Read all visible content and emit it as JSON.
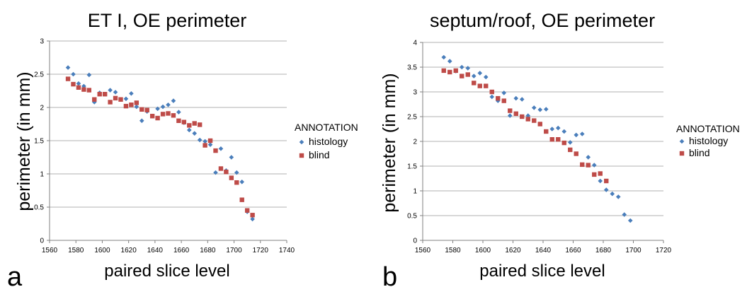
{
  "series_style": {
    "histology": {
      "color": "#4A7EBB",
      "marker": "diamond"
    },
    "blind": {
      "color": "#BE4B48",
      "marker": "square"
    }
  },
  "chart_data": [
    {
      "type": "scatter",
      "panel_label": "a",
      "title": "ET I, OE perimeter",
      "xlabel": "paired slice level",
      "ylabel": "perimeter (in mm)",
      "xlim": [
        1560,
        1740
      ],
      "ylim": [
        0,
        3
      ],
      "xticks": [
        1560,
        1580,
        1600,
        1620,
        1640,
        1660,
        1680,
        1700,
        1720,
        1740
      ],
      "yticks": [
        0,
        0.5,
        1,
        1.5,
        2,
        2.5,
        3
      ],
      "xtick_labels": [
        "1560",
        "1580",
        "1600",
        "1620",
        "1640",
        "1660",
        "1680",
        "1700",
        "1720",
        "1740"
      ],
      "ytick_labels": [
        "0",
        "0.5",
        "1",
        "1.5",
        "2",
        "2.5",
        "3"
      ],
      "grid": "horizontal",
      "legend": {
        "title": "ANNOTATION",
        "position": "right"
      },
      "series": [
        {
          "name": "histology",
          "points": [
            [
              1574,
              2.6
            ],
            [
              1578,
              2.5
            ],
            [
              1582,
              2.36
            ],
            [
              1586,
              2.32
            ],
            [
              1590,
              2.49
            ],
            [
              1594,
              2.08
            ],
            [
              1598,
              2.22
            ],
            [
              1602,
              2.2
            ],
            [
              1606,
              2.26
            ],
            [
              1610,
              2.23
            ],
            [
              1614,
              2.12
            ],
            [
              1618,
              2.13
            ],
            [
              1622,
              2.21
            ],
            [
              1626,
              2.01
            ],
            [
              1630,
              1.8
            ],
            [
              1634,
              1.94
            ],
            [
              1638,
              1.87
            ],
            [
              1642,
              1.98
            ],
            [
              1646,
              2.01
            ],
            [
              1650,
              2.04
            ],
            [
              1654,
              2.1
            ],
            [
              1658,
              1.93
            ],
            [
              1662,
              1.77
            ],
            [
              1666,
              1.66
            ],
            [
              1670,
              1.61
            ],
            [
              1674,
              1.51
            ],
            [
              1678,
              1.49
            ],
            [
              1682,
              1.44
            ],
            [
              1686,
              1.02
            ],
            [
              1690,
              1.38
            ],
            [
              1694,
              1.05
            ],
            [
              1698,
              1.25
            ],
            [
              1702,
              1.02
            ],
            [
              1706,
              0.88
            ],
            [
              1710,
              0.43
            ],
            [
              1714,
              0.32
            ]
          ]
        },
        {
          "name": "blind",
          "points": [
            [
              1574,
              2.43
            ],
            [
              1578,
              2.35
            ],
            [
              1582,
              2.3
            ],
            [
              1586,
              2.27
            ],
            [
              1590,
              2.26
            ],
            [
              1594,
              2.12
            ],
            [
              1598,
              2.2
            ],
            [
              1602,
              2.2
            ],
            [
              1606,
              2.08
            ],
            [
              1610,
              2.14
            ],
            [
              1614,
              2.12
            ],
            [
              1618,
              2.02
            ],
            [
              1622,
              2.04
            ],
            [
              1626,
              2.07
            ],
            [
              1630,
              1.97
            ],
            [
              1634,
              1.96
            ],
            [
              1638,
              1.87
            ],
            [
              1642,
              1.84
            ],
            [
              1646,
              1.9
            ],
            [
              1650,
              1.91
            ],
            [
              1654,
              1.88
            ],
            [
              1658,
              1.8
            ],
            [
              1662,
              1.78
            ],
            [
              1666,
              1.73
            ],
            [
              1670,
              1.76
            ],
            [
              1674,
              1.74
            ],
            [
              1678,
              1.43
            ],
            [
              1682,
              1.5
            ],
            [
              1686,
              1.35
            ],
            [
              1690,
              1.08
            ],
            [
              1694,
              1.03
            ],
            [
              1698,
              0.94
            ],
            [
              1702,
              0.87
            ],
            [
              1706,
              0.61
            ],
            [
              1710,
              0.45
            ],
            [
              1714,
              0.38
            ]
          ]
        }
      ]
    },
    {
      "type": "scatter",
      "panel_label": "b",
      "title": "septum/roof, OE perimeter",
      "xlabel": "paired slice level",
      "ylabel": "perimeter (in mm)",
      "xlim": [
        1560,
        1720
      ],
      "ylim": [
        0,
        4
      ],
      "xticks": [
        1560,
        1580,
        1600,
        1620,
        1640,
        1660,
        1680,
        1700,
        1720
      ],
      "yticks": [
        0,
        0.5,
        1,
        1.5,
        2,
        2.5,
        3,
        3.5,
        4
      ],
      "xtick_labels": [
        "1560",
        "1580",
        "1600",
        "1620",
        "1640",
        "1660",
        "1680",
        "1700",
        "1720"
      ],
      "ytick_labels": [
        "0",
        "0.5",
        "1",
        "1.5",
        "2",
        "2.5",
        "3",
        "3.5",
        "4"
      ],
      "grid": "horizontal",
      "legend": {
        "title": "ANNOTATION",
        "position": "right"
      },
      "series": [
        {
          "name": "histology",
          "points": [
            [
              1574,
              3.7
            ],
            [
              1578,
              3.62
            ],
            [
              1582,
              3.42
            ],
            [
              1586,
              3.5
            ],
            [
              1590,
              3.48
            ],
            [
              1594,
              3.32
            ],
            [
              1598,
              3.38
            ],
            [
              1602,
              3.3
            ],
            [
              1606,
              2.9
            ],
            [
              1610,
              2.82
            ],
            [
              1614,
              2.98
            ],
            [
              1618,
              2.52
            ],
            [
              1622,
              2.87
            ],
            [
              1626,
              2.85
            ],
            [
              1630,
              2.52
            ],
            [
              1634,
              2.68
            ],
            [
              1638,
              2.64
            ],
            [
              1642,
              2.65
            ],
            [
              1646,
              2.25
            ],
            [
              1650,
              2.27
            ],
            [
              1654,
              2.2
            ],
            [
              1658,
              1.98
            ],
            [
              1662,
              2.13
            ],
            [
              1666,
              2.15
            ],
            [
              1670,
              1.68
            ],
            [
              1674,
              1.52
            ],
            [
              1678,
              1.2
            ],
            [
              1682,
              1.02
            ],
            [
              1686,
              0.94
            ],
            [
              1690,
              0.88
            ],
            [
              1694,
              0.52
            ],
            [
              1698,
              0.4
            ]
          ]
        },
        {
          "name": "blind",
          "points": [
            [
              1574,
              3.43
            ],
            [
              1578,
              3.4
            ],
            [
              1582,
              3.43
            ],
            [
              1586,
              3.32
            ],
            [
              1590,
              3.35
            ],
            [
              1594,
              3.18
            ],
            [
              1598,
              3.12
            ],
            [
              1602,
              3.12
            ],
            [
              1606,
              3.0
            ],
            [
              1610,
              2.87
            ],
            [
              1614,
              2.82
            ],
            [
              1618,
              2.62
            ],
            [
              1622,
              2.56
            ],
            [
              1626,
              2.5
            ],
            [
              1630,
              2.45
            ],
            [
              1634,
              2.42
            ],
            [
              1638,
              2.35
            ],
            [
              1642,
              2.2
            ],
            [
              1646,
              2.04
            ],
            [
              1650,
              2.04
            ],
            [
              1654,
              1.97
            ],
            [
              1658,
              1.83
            ],
            [
              1662,
              1.75
            ],
            [
              1666,
              1.53
            ],
            [
              1670,
              1.52
            ],
            [
              1674,
              1.33
            ],
            [
              1678,
              1.35
            ],
            [
              1682,
              1.2
            ]
          ]
        }
      ]
    }
  ]
}
